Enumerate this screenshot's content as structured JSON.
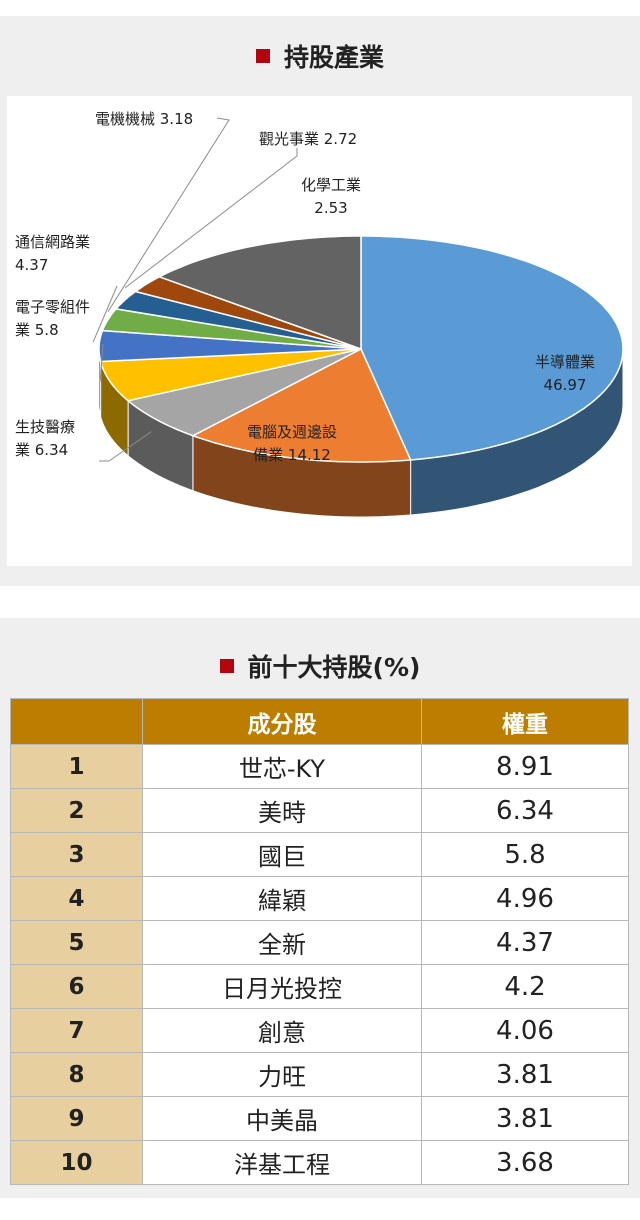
{
  "pie_section": {
    "title": "持股產業"
  },
  "table_section": {
    "title": "前十大持股(%)",
    "headers": [
      "",
      "成分股",
      "權重"
    ],
    "rows": [
      {
        "rank": "1",
        "name": "世芯-KY",
        "weight": "8.91"
      },
      {
        "rank": "2",
        "name": "美時",
        "weight": "6.34"
      },
      {
        "rank": "3",
        "name": "國巨",
        "weight": "5.8"
      },
      {
        "rank": "4",
        "name": "緯穎",
        "weight": "4.96"
      },
      {
        "rank": "5",
        "name": "全新",
        "weight": "4.37"
      },
      {
        "rank": "6",
        "name": "日月光投控",
        "weight": "4.2"
      },
      {
        "rank": "7",
        "name": "創意",
        "weight": "4.06"
      },
      {
        "rank": "8",
        "name": "力旺",
        "weight": "3.81"
      },
      {
        "rank": "9",
        "name": "中美晶",
        "weight": "3.81"
      },
      {
        "rank": "10",
        "name": "洋基工程",
        "weight": "3.68"
      }
    ]
  },
  "chart_data": {
    "type": "pie",
    "title": "持股產業",
    "categories": [
      "半導體業",
      "電腦及週邊設備業",
      "生技醫療業",
      "電子零組件業",
      "通信網路業",
      "電機機械",
      "觀光事業",
      "化學工業"
    ],
    "values": [
      46.97,
      14.12,
      6.34,
      5.8,
      4.37,
      3.18,
      2.72,
      2.53
    ],
    "colors": [
      "#5b9bd5",
      "#ed7d31",
      "#a5a5a5",
      "#ffc000",
      "#4472c4",
      "#70ad47",
      "#255e91",
      "#9e480e",
      "#636363"
    ],
    "label_lines": [
      [
        "半導體業",
        "46.97"
      ],
      [
        "電腦及週邊設",
        "備業 14.12"
      ],
      [
        "生技醫療",
        "業 6.34"
      ],
      [
        "電子零組件",
        "業 5.8"
      ],
      [
        "通信網路業",
        "4.37"
      ],
      [
        "電機機械 3.18"
      ],
      [
        "觀光事業 2.72"
      ],
      [
        "化學工業",
        "2.53"
      ]
    ],
    "style": "3d",
    "legend": "none"
  }
}
